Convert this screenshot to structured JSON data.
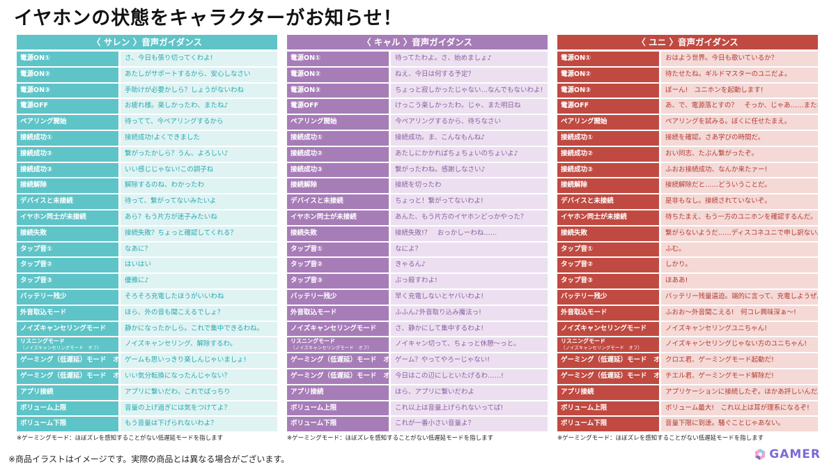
{
  "title": "イヤホンの状態をキャラクターがお知らせ！",
  "columns": [
    {
      "header": "〈 サレン 〉音声ガイダンス",
      "note": "※ゲーミングモード：ほぼズレを感知することがない低遅延モードを指します",
      "rows": [
        {
          "k": "電源ON①",
          "v": "さ、今日も張り切ってくわよ!"
        },
        {
          "k": "電源ON②",
          "v": "あたしがサポートするから、安心しなさい"
        },
        {
          "k": "電源ON③",
          "v": "手助けが必要かしら？しょうがないわね"
        },
        {
          "k": "電源OFF",
          "v": "お疲れ様。楽しかったわ、またね♪"
        },
        {
          "k": "ペアリング開始",
          "v": "待ってて、今ペアリングするから"
        },
        {
          "k": "接続成功①",
          "v": "接続成功!よくできました"
        },
        {
          "k": "接続成功②",
          "v": "繋がったかしら？うん、よろしい♪"
        },
        {
          "k": "接続成功③",
          "v": "いい感じじゃない!この調子ね"
        },
        {
          "k": "接続解除",
          "v": "解除するのね、わかったわ"
        },
        {
          "k": "デバイスと未接続",
          "v": "待って、繋がってないみたいよ"
        },
        {
          "k": "イヤホン同士が未接続",
          "v": "あら？もう片方が迷子みたいね"
        },
        {
          "k": "接続失敗",
          "v": "接続失敗？ちょっと確認してくれる？"
        },
        {
          "k": "タップ音①",
          "v": "なあに？"
        },
        {
          "k": "タップ音②",
          "v": "はいはい"
        },
        {
          "k": "タップ音③",
          "v": "優雅に♪"
        },
        {
          "k": "バッテリー残少",
          "v": "そろそろ充電したほうがいいわね"
        },
        {
          "k": "外音取込モード",
          "v": "ほら、外の音も聞こえるでしょ？"
        },
        {
          "k": "ノイズキャンセリングモード",
          "v": "静かになったかしら。これで集中できるわね。"
        },
        {
          "k": "リスニングモード",
          "k2": "（ノイズキャンセリングモード　オフ）",
          "v": "ノイズキャンセリング、解除するわ。"
        },
        {
          "k": "ゲーミング（低遅延）モード　オン",
          "v": "ゲームも思いっきり楽しんじゃいましょ!"
        },
        {
          "k": "ゲーミング（低遅延）モード　オフ",
          "v": "いい気分転換になったんじゃない？"
        },
        {
          "k": "アプリ接続",
          "v": "アプリに繋いだわ。これでばっちり"
        },
        {
          "k": "ボリューム上限",
          "v": "音量の上げ過ぎには気をつけてよ？"
        },
        {
          "k": "ボリューム下限",
          "v": "もう音量は下げられないわよ？"
        }
      ]
    },
    {
      "header": "〈 キャル 〉音声ガイダンス",
      "note": "※ゲーミングモード：ほぼズレを感知することがない低遅延モードを指します",
      "rows": [
        {
          "k": "電源ON①",
          "v": "待ってたわよ。さ、始めましょ♪"
        },
        {
          "k": "電源ON②",
          "v": "ねえ、今日は何する予定？"
        },
        {
          "k": "電源ON③",
          "v": "ちょっと寂しかったじゃない…なんでもないわよ!"
        },
        {
          "k": "電源OFF",
          "v": "けっこう楽しかったわ。じゃ、また明日ね"
        },
        {
          "k": "ペアリング開始",
          "v": "今ペアリングするから、待ちなさい"
        },
        {
          "k": "接続成功①",
          "v": "接続成功。ま、こんなもんね♪"
        },
        {
          "k": "接続成功②",
          "v": "あたしにかかればちょちょいのちょいよ♪"
        },
        {
          "k": "接続成功③",
          "v": "繋がったわね。感謝しなさい♪"
        },
        {
          "k": "接続解除",
          "v": "接続を切ったわ"
        },
        {
          "k": "デバイスと未接続",
          "v": "ちょっと！繋がってないわよ!"
        },
        {
          "k": "イヤホン同士が未接続",
          "v": "あんた、もう片方のイヤホンどっかやった？"
        },
        {
          "k": "接続失敗",
          "v": "接続失敗!？　おっかしーわね……"
        },
        {
          "k": "タップ音①",
          "v": "なによ？"
        },
        {
          "k": "タップ音②",
          "v": "きゃるん♪"
        },
        {
          "k": "タップ音③",
          "v": "ぶっ殺すわよ!"
        },
        {
          "k": "バッテリー残少",
          "v": "早く充電しないとヤバいわよ!"
        },
        {
          "k": "外音取込モード",
          "v": "ふふん♪外音取り込み魔法っ!"
        },
        {
          "k": "ノイズキャンセリングモード",
          "v": "さ、静かにして集中するわよ!"
        },
        {
          "k": "リスニングモード",
          "k2": "（ノイズキャンセリングモード　オフ）",
          "v": "ノイキャン切って、ちょっと休憩～っと。"
        },
        {
          "k": "ゲーミング（低遅延）モード　オン",
          "v": "ゲーム？やってやろーじゃない!"
        },
        {
          "k": "ゲーミング（低遅延）モード　オフ",
          "v": "今日はこの辺にしといたげるわ……!"
        },
        {
          "k": "アプリ接続",
          "v": "ほら、アプリに繋いだわよ"
        },
        {
          "k": "ボリューム上限",
          "v": "これ以上は音量上げられないってば!"
        },
        {
          "k": "ボリューム下限",
          "v": "これが一番小さい音量よ？"
        }
      ]
    },
    {
      "header": "〈 ユニ 〉音声ガイダンス",
      "note": "※ゲーミングモード：ほぼズレを感知することがない低遅延モードを指します",
      "rows": [
        {
          "k": "電源ON①",
          "v": "おはよう世界。今日も歌いているか？"
        },
        {
          "k": "電源ON②",
          "v": "待たせたね。ギルドマスターのユニだよ。"
        },
        {
          "k": "電源ON③",
          "v": "ぽーん!　ユニホンを起動します!"
        },
        {
          "k": "電源OFF",
          "v": "あ、で、電源落とすの？　そっか、じゃあ……またね"
        },
        {
          "k": "ペアリング開始",
          "v": "ペアリングを試みる。ぼくに任せたまえ。"
        },
        {
          "k": "接続成功①",
          "v": "接続を確認。さあ学びの時間だ。"
        },
        {
          "k": "接続成功②",
          "v": "おい同志、たぶん繋がったぞ。"
        },
        {
          "k": "接続成功③",
          "v": "ふおお接続成功、なんか来たァー!"
        },
        {
          "k": "接続解除",
          "v": "接続解除だと……どういうことだ。"
        },
        {
          "k": "デバイスと未接続",
          "v": "是非もなし。接続されていないぞ。"
        },
        {
          "k": "イヤホン同士が未接続",
          "v": "待ちたまえ、もう一方のユニホンを確認するんだ。"
        },
        {
          "k": "接続失敗",
          "v": "繋がらないようだ……ディスコネユニで申し訳ない。"
        },
        {
          "k": "タップ音①",
          "v": "ふむ。"
        },
        {
          "k": "タップ音②",
          "v": "しかり。"
        },
        {
          "k": "タップ音③",
          "v": "ほああ!"
        },
        {
          "k": "バッテリー残少",
          "v": "バッテリー残量逼迫。端的に言って、充電しようぜ。"
        },
        {
          "k": "外音取込モード",
          "v": "ふおお～外音聞こえる!　何コレ興味深ぁ～!"
        },
        {
          "k": "ノイズキャンセリングモード",
          "v": "ノイズキャンセリングユニちゃん!"
        },
        {
          "k": "リスニングモード",
          "k2": "（ノイズキャンセリングモード　オフ）",
          "v": "ノイズキャンセリングじゃない方のユニちゃん!"
        },
        {
          "k": "ゲーミング（低遅延）モード　オン",
          "v": "クロエ君、ゲーミングモード起動だ!"
        },
        {
          "k": "ゲーミング（低遅延）モード　オフ",
          "v": "チエル君、ゲーミングモード解除だ!"
        },
        {
          "k": "アプリ接続",
          "v": "アプリケーションに接続したぞ。ほかあ評しいんだ。"
        },
        {
          "k": "ボリューム上限",
          "v": "ボリューム最大!　これ以上は耳が理系になるぞ!"
        },
        {
          "k": "ボリューム下限",
          "v": "音量下限に到達。騒ぐことじゃあない。"
        }
      ]
    }
  ],
  "footer": "※商品イラストはイメージです。実際の商品とは異なる場合がございます。",
  "logo": {
    "text": "GAMER",
    "icon": "gamer-logo-icon"
  }
}
